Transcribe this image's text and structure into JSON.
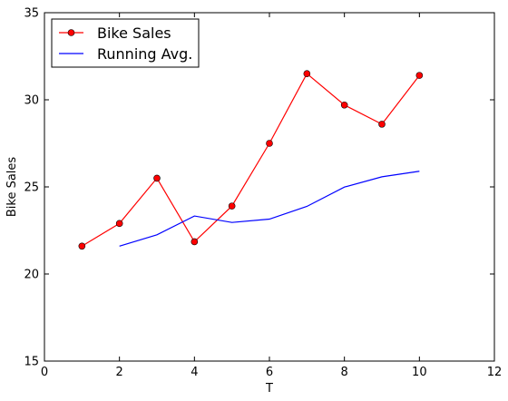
{
  "chart_data": {
    "type": "line",
    "xlabel": "T",
    "ylabel": "Bike Sales",
    "xlim": [
      0,
      12
    ],
    "ylim": [
      15,
      35
    ],
    "xticks": [
      "0",
      "2",
      "4",
      "6",
      "8",
      "10",
      "12"
    ],
    "yticks": [
      "15",
      "20",
      "25",
      "30",
      "35"
    ],
    "grid": false,
    "legend_position": "top-left",
    "series": [
      {
        "name": "Bike Sales",
        "color": "#ff0000",
        "marker": "circle",
        "x": [
          1,
          2,
          3,
          4,
          5,
          6,
          7,
          8,
          9,
          10
        ],
        "y": [
          21.6,
          22.9,
          25.5,
          21.85,
          23.9,
          27.5,
          31.5,
          29.7,
          28.6,
          31.4
        ]
      },
      {
        "name": "Running Avg.",
        "color": "#0000ff",
        "marker": "none",
        "x": [
          2,
          3,
          4,
          5,
          6,
          7,
          8,
          9,
          10
        ],
        "y": [
          21.6,
          22.25,
          23.33,
          22.96,
          23.15,
          23.88,
          24.99,
          25.58,
          25.9
        ]
      }
    ]
  }
}
